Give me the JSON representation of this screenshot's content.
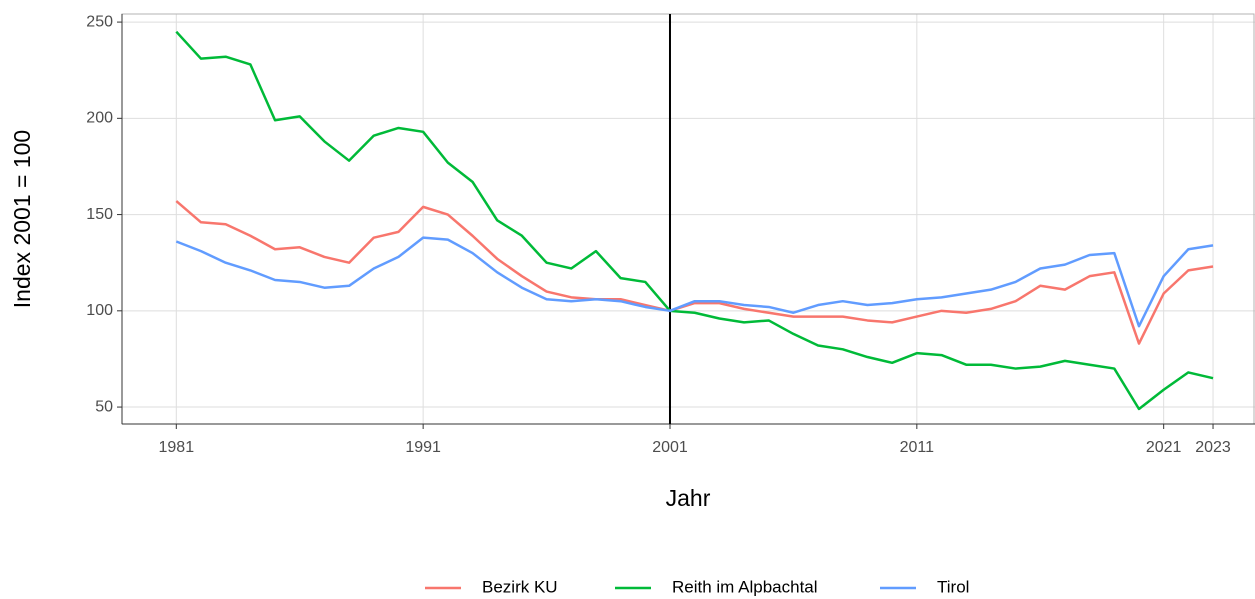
{
  "chart_data": {
    "type": "line",
    "x_label": "Jahr",
    "y_label": "Index 2001 = 100",
    "x": [
      1981,
      1982,
      1983,
      1984,
      1985,
      1986,
      1987,
      1988,
      1989,
      1990,
      1991,
      1992,
      1993,
      1994,
      1995,
      1996,
      1997,
      1998,
      1999,
      2000,
      2001,
      2002,
      2003,
      2004,
      2005,
      2006,
      2007,
      2008,
      2009,
      2010,
      2011,
      2012,
      2013,
      2014,
      2015,
      2016,
      2017,
      2018,
      2019,
      2020,
      2021,
      2022,
      2023
    ],
    "series": [
      {
        "name": "Bezirk KU",
        "color": "#F8766D",
        "values": [
          157,
          146,
          145,
          139,
          132,
          133,
          128,
          125,
          138,
          141,
          154,
          150,
          139,
          127,
          118,
          110,
          107,
          106,
          106,
          103,
          100,
          104,
          104,
          101,
          99,
          97,
          97,
          97,
          95,
          94,
          97,
          100,
          99,
          101,
          105,
          113,
          111,
          118,
          120,
          83,
          109,
          121,
          123
        ]
      },
      {
        "name": "Reith im Alpbachtal",
        "color": "#00BA38",
        "values": [
          245,
          231,
          232,
          228,
          199,
          201,
          188,
          178,
          191,
          195,
          193,
          177,
          167,
          147,
          139,
          125,
          122,
          131,
          117,
          115,
          100,
          99,
          96,
          94,
          95,
          88,
          82,
          80,
          76,
          73,
          78,
          77,
          72,
          72,
          70,
          71,
          74,
          72,
          70,
          49,
          59,
          68,
          65
        ]
      },
      {
        "name": "Tirol",
        "color": "#619CFF",
        "values": [
          136,
          131,
          125,
          121,
          116,
          115,
          112,
          113,
          122,
          128,
          138,
          137,
          130,
          120,
          112,
          106,
          105,
          106,
          105,
          102,
          100,
          105,
          105,
          103,
          102,
          99,
          103,
          105,
          103,
          104,
          106,
          107,
          109,
          111,
          115,
          122,
          124,
          129,
          130,
          92,
          118,
          132,
          134
        ]
      }
    ],
    "xlim": [
      1978.8,
      2024.7
    ],
    "ylim": [
      41.2,
      254.2
    ],
    "xticks": [
      1981,
      1991,
      2001,
      2011,
      2021,
      2023
    ],
    "yticks": [
      50,
      100,
      150,
      200,
      250
    ],
    "vline": 2001,
    "grid": true,
    "legend": "bottom"
  }
}
